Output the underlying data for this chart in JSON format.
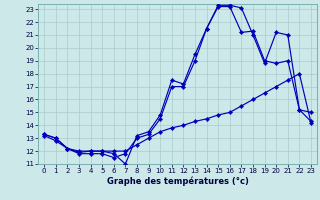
{
  "title": "Graphe des températures (°c)",
  "bg_color": "#cce8e8",
  "grid_color": "#aacccc",
  "line_color": "#0000bb",
  "marker_color": "#0000bb",
  "xlim": [
    -0.5,
    23.5
  ],
  "ylim": [
    11,
    23.4
  ],
  "xticks": [
    0,
    1,
    2,
    3,
    4,
    5,
    6,
    7,
    8,
    9,
    10,
    11,
    12,
    13,
    14,
    15,
    16,
    17,
    18,
    19,
    20,
    21,
    22,
    23
  ],
  "yticks": [
    11,
    12,
    13,
    14,
    15,
    16,
    17,
    18,
    19,
    20,
    21,
    22,
    23
  ],
  "series": [
    {
      "x": [
        0,
        1,
        2,
        3,
        4,
        5,
        6,
        7,
        8,
        9,
        10,
        11,
        12,
        13,
        14,
        15,
        16,
        17,
        18,
        19,
        20,
        21,
        22,
        23
      ],
      "y": [
        13.3,
        13.0,
        12.2,
        12.0,
        12.0,
        12.0,
        12.0,
        12.0,
        12.5,
        13.0,
        13.5,
        13.8,
        14.0,
        14.3,
        14.5,
        14.8,
        15.0,
        15.5,
        16.0,
        16.5,
        17.0,
        17.5,
        18.0,
        14.2
      ]
    },
    {
      "x": [
        0,
        1,
        2,
        3,
        4,
        5,
        6,
        7,
        8,
        9,
        10,
        11,
        12,
        13,
        14,
        15,
        16,
        17,
        18,
        19,
        20,
        21,
        22,
        23
      ],
      "y": [
        13.3,
        13.0,
        12.2,
        11.9,
        12.0,
        12.0,
        11.8,
        11.0,
        13.2,
        13.5,
        14.8,
        17.5,
        17.2,
        19.5,
        21.5,
        23.2,
        23.2,
        21.2,
        21.3,
        19.0,
        18.8,
        19.0,
        15.2,
        15.0
      ]
    },
    {
      "x": [
        0,
        1,
        2,
        3,
        4,
        5,
        6,
        7,
        8,
        9,
        10,
        11,
        12,
        13,
        14,
        15,
        16,
        17,
        18,
        19,
        20,
        21,
        22,
        23
      ],
      "y": [
        13.2,
        12.8,
        12.2,
        11.8,
        11.8,
        11.8,
        11.5,
        11.8,
        13.0,
        13.3,
        14.5,
        17.0,
        17.0,
        19.0,
        21.5,
        23.3,
        23.3,
        23.1,
        21.0,
        18.8,
        21.2,
        21.0,
        15.2,
        14.3
      ]
    }
  ]
}
